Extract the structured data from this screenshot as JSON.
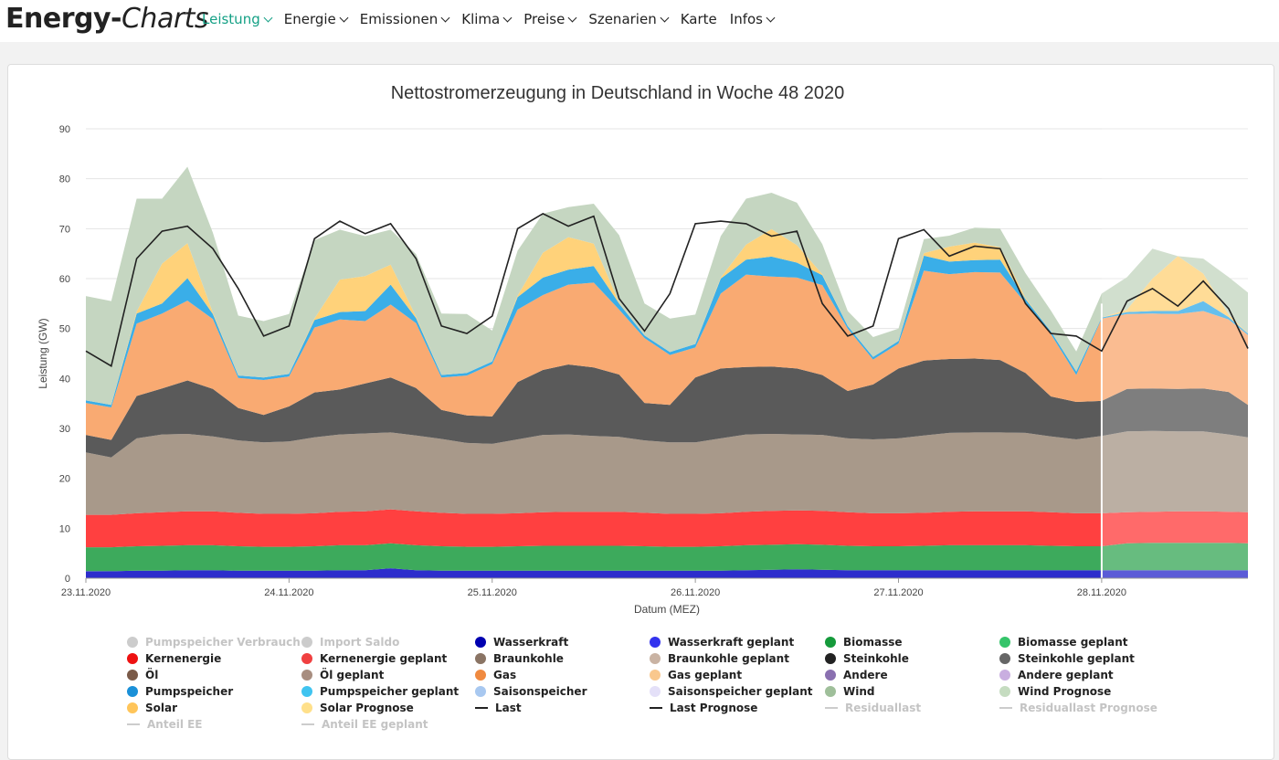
{
  "header": {
    "brand_bold": "Energy-",
    "brand_italic": "Charts",
    "nav": [
      {
        "label": "Leistung",
        "dropdown": true,
        "active": true
      },
      {
        "label": "Energie",
        "dropdown": true
      },
      {
        "label": "Emissionen",
        "dropdown": true
      },
      {
        "label": "Klima",
        "dropdown": true
      },
      {
        "label": "Preise",
        "dropdown": true
      },
      {
        "label": "Szenarien",
        "dropdown": true
      },
      {
        "label": "Karte",
        "dropdown": false
      },
      {
        "label": "Infos",
        "dropdown": true
      }
    ]
  },
  "chart_data": {
    "type": "area",
    "title": "Nettostromerzeugung in Deutschland in Woche 48 2020",
    "xlabel": "Datum (MEZ)",
    "ylabel": "Leistung (GW)",
    "ylim": [
      0,
      90
    ],
    "yticks": [
      0,
      10,
      20,
      30,
      40,
      50,
      60,
      70,
      80,
      90
    ],
    "xlim": [
      0,
      5.72
    ],
    "x_unit": "days since 23.11.2020 00:00",
    "xticks": [
      {
        "x": 0,
        "label": "23.11.2020"
      },
      {
        "x": 1,
        "label": "24.11.2020"
      },
      {
        "x": 2,
        "label": "25.11.2020"
      },
      {
        "x": 3,
        "label": "26.11.2020"
      },
      {
        "x": 4,
        "label": "27.11.2020"
      },
      {
        "x": 5,
        "label": "28.11.2020"
      }
    ],
    "forecast_start_x": 5.0,
    "stacking": "cumulative",
    "x": [
      0,
      0.125,
      0.25,
      0.375,
      0.5,
      0.625,
      0.75,
      0.875,
      1,
      1.125,
      1.25,
      1.375,
      1.5,
      1.625,
      1.75,
      1.875,
      2,
      2.125,
      2.25,
      2.375,
      2.5,
      2.625,
      2.75,
      2.875,
      3,
      3.125,
      3.25,
      3.375,
      3.5,
      3.625,
      3.75,
      3.875,
      4,
      4.125,
      4.25,
      4.375,
      4.5,
      4.625,
      4.75,
      4.875,
      5,
      5.125,
      5.25,
      5.375,
      5.5,
      5.625,
      5.72
    ],
    "series": [
      {
        "name": "Wasserkraft",
        "color": "#2d2dcc",
        "values": [
          1.4,
          1.4,
          1.5,
          1.5,
          1.6,
          1.6,
          1.5,
          1.5,
          1.5,
          1.5,
          1.6,
          1.6,
          2.0,
          1.6,
          1.5,
          1.5,
          1.5,
          1.5,
          1.5,
          1.5,
          1.5,
          1.5,
          1.5,
          1.5,
          1.5,
          1.5,
          1.6,
          1.7,
          1.8,
          1.7,
          1.6,
          1.6,
          1.6,
          1.6,
          1.6,
          1.6,
          1.6,
          1.6,
          1.6,
          1.6,
          1.6,
          1.6,
          1.6,
          1.6,
          1.6,
          1.6,
          1.6
        ]
      },
      {
        "name": "Biomasse",
        "color": "#3daa5c",
        "values": [
          4.8,
          4.8,
          4.9,
          5.0,
          5.0,
          5.0,
          4.9,
          4.8,
          4.8,
          4.9,
          5.0,
          5.0,
          5.0,
          5.0,
          4.9,
          4.8,
          4.8,
          4.9,
          5.0,
          5.0,
          5.0,
          5.0,
          4.9,
          4.8,
          4.8,
          4.9,
          5.0,
          5.0,
          5.0,
          5.0,
          4.9,
          4.8,
          4.8,
          4.9,
          5.0,
          5.0,
          5.0,
          5.0,
          4.9,
          4.8,
          4.8,
          5.4,
          5.5,
          5.5,
          5.5,
          5.5,
          5.4
        ]
      },
      {
        "name": "Kernenergie",
        "color": "#ff4040",
        "values": [
          6.5,
          6.5,
          6.6,
          6.7,
          6.8,
          6.8,
          6.7,
          6.6,
          6.6,
          6.6,
          6.7,
          6.8,
          6.8,
          6.8,
          6.7,
          6.6,
          6.6,
          6.6,
          6.7,
          6.8,
          6.8,
          6.8,
          6.7,
          6.6,
          6.6,
          6.6,
          6.7,
          6.8,
          6.8,
          6.8,
          6.7,
          6.6,
          6.6,
          6.6,
          6.7,
          6.8,
          6.8,
          6.8,
          6.7,
          6.6,
          6.6,
          6.2,
          6.2,
          6.3,
          6.3,
          6.2,
          6.2
        ]
      },
      {
        "name": "Braunkohle",
        "color": "#a8998a",
        "values": [
          12.5,
          11.5,
          15.0,
          15.6,
          15.5,
          15.0,
          14.5,
          14.3,
          14.5,
          15.2,
          15.5,
          15.6,
          15.4,
          15.2,
          14.8,
          14.2,
          14.0,
          14.8,
          15.5,
          15.5,
          15.2,
          15.0,
          14.5,
          14.3,
          14.3,
          15.0,
          15.5,
          15.4,
          15.2,
          15.2,
          14.8,
          14.8,
          15.0,
          15.5,
          15.8,
          15.8,
          15.8,
          15.7,
          15.2,
          14.8,
          15.5,
          16.2,
          16.2,
          16.0,
          16.0,
          15.5,
          15.0
        ]
      },
      {
        "name": "Steinkohle",
        "color": "#5a5a5a",
        "values": [
          3.5,
          3.5,
          8.5,
          9.2,
          10.7,
          9.5,
          6.5,
          5.5,
          7.0,
          9.0,
          9.0,
          10.0,
          11.0,
          9.5,
          5.8,
          5.5,
          5.5,
          11.5,
          13.0,
          14.0,
          13.7,
          12.5,
          7.5,
          7.5,
          13.0,
          14.0,
          13.5,
          13.5,
          13.2,
          12.0,
          9.5,
          11.0,
          14.0,
          15.0,
          14.8,
          14.8,
          14.5,
          12.0,
          8.0,
          7.5,
          7.0,
          8.5,
          8.5,
          8.5,
          8.6,
          8.5,
          6.5
        ]
      },
      {
        "name": "Gas",
        "color": "#f9aa72",
        "values": [
          6.4,
          6.5,
          14.5,
          15.0,
          16.0,
          14.0,
          6.0,
          7.0,
          6.0,
          13.0,
          14.0,
          12.5,
          14.6,
          13.0,
          6.5,
          8.0,
          10.5,
          14.5,
          15.0,
          16.0,
          17.0,
          13.0,
          13.0,
          10.0,
          6.0,
          15.0,
          18.5,
          18.0,
          18.2,
          18.0,
          12.5,
          5.0,
          5.0,
          18.0,
          17.0,
          17.3,
          17.5,
          14.0,
          12.5,
          5.4,
          16.5,
          15.0,
          15.0,
          15.0,
          15.5,
          14.5,
          14.0
        ]
      },
      {
        "name": "Pumpspeicher",
        "color": "#3aaee8",
        "values": [
          0.5,
          0.5,
          2.0,
          2.0,
          4.5,
          1.0,
          0.5,
          0.5,
          0.5,
          1.5,
          1.5,
          2.0,
          4.0,
          1.0,
          0.5,
          0.5,
          0.5,
          2.5,
          3.5,
          3.0,
          3.3,
          1.2,
          0.5,
          0.6,
          0.7,
          3.0,
          3.0,
          4.0,
          3.0,
          2.0,
          0.5,
          0.5,
          0.5,
          3.0,
          2.5,
          2.4,
          2.6,
          0.8,
          0.5,
          0.7,
          0.2,
          0.4,
          0.5,
          0.6,
          2.0,
          0.5,
          0.3
        ]
      },
      {
        "name": "Solar",
        "color": "#ffd27a",
        "values": [
          0,
          0,
          0.4,
          8.0,
          7.0,
          0.3,
          0,
          0,
          0,
          0.3,
          6.5,
          7.0,
          4.0,
          0.3,
          0,
          0,
          0,
          0.3,
          5.0,
          6.5,
          4.5,
          0.2,
          0,
          0,
          0,
          0.2,
          3.0,
          5.5,
          3.5,
          0.2,
          0,
          0,
          0,
          0.5,
          3.0,
          3.5,
          2.5,
          0.2,
          0,
          0,
          0,
          0.5,
          6.5,
          11.0,
          5.5,
          0.5,
          0
        ]
      },
      {
        "name": "Wind",
        "color": "#c5d6c1",
        "values": [
          20.9,
          20.8,
          22.6,
          13.0,
          15.3,
          16.0,
          12.0,
          11.3,
          12.0,
          15.7,
          10.0,
          8.0,
          7.0,
          12.5,
          12.3,
          11.8,
          6.2,
          9.0,
          7.8,
          6.0,
          8.0,
          13.5,
          6.4,
          6.7,
          5.9,
          8.3,
          9.2,
          7.3,
          8.5,
          6.0,
          3.0,
          4.0,
          2.5,
          2.8,
          2.2,
          3.0,
          3.7,
          5.0,
          4.2,
          4.0,
          4.8,
          6.5,
          6.0,
          0,
          3.0,
          7.5,
          8.2
        ]
      }
    ],
    "lines": [
      {
        "name": "Last",
        "color": "#222222",
        "values": [
          45.5,
          42.5,
          64.0,
          69.5,
          70.5,
          66.0,
          58.0,
          48.5,
          50.5,
          68.0,
          71.5,
          69.0,
          71.0,
          64.0,
          50.5,
          49.0,
          52.5,
          70.0,
          73.0,
          70.5,
          72.5,
          56.0,
          49.5,
          57.0,
          71.0,
          71.5,
          71.0,
          68.5,
          69.5,
          55.0,
          48.5,
          50.5,
          68.0,
          69.8,
          64.5,
          66.5,
          66.0,
          55.0,
          49.0,
          48.5,
          45.5,
          55.5,
          58.0,
          54.5,
          59.5,
          54.0,
          46.0
        ]
      }
    ]
  },
  "legend": [
    {
      "label": "Pumpspeicher Verbrauch",
      "color": "#cccccc",
      "marker": "dot",
      "hidden": true
    },
    {
      "label": "Import Saldo",
      "color": "#cccccc",
      "marker": "dot",
      "hidden": true
    },
    {
      "label": "Wasserkraft",
      "color": "#0000b0",
      "marker": "dot"
    },
    {
      "label": "Wasserkraft geplant",
      "color": "#3333ee",
      "marker": "dot"
    },
    {
      "label": "Biomasse",
      "color": "#159a3b",
      "marker": "dot"
    },
    {
      "label": "Biomasse geplant",
      "color": "#35c46a",
      "marker": "dot"
    },
    {
      "label": "Kernenergie",
      "color": "#ee1111",
      "marker": "dot"
    },
    {
      "label": "Kernenergie geplant",
      "color": "#f04040",
      "marker": "dot"
    },
    {
      "label": "Braunkohle",
      "color": "#8a7464",
      "marker": "dot"
    },
    {
      "label": "Braunkohle geplant",
      "color": "#c9b3a3",
      "marker": "dot"
    },
    {
      "label": "Steinkohle",
      "color": "#222222",
      "marker": "dot"
    },
    {
      "label": "Steinkohle geplant",
      "color": "#666666",
      "marker": "dot"
    },
    {
      "label": "Öl",
      "color": "#7a5a48",
      "marker": "dot"
    },
    {
      "label": "Öl geplant",
      "color": "#a88e80",
      "marker": "dot"
    },
    {
      "label": "Gas",
      "color": "#f08a40",
      "marker": "dot"
    },
    {
      "label": "Gas geplant",
      "color": "#f9c88e",
      "marker": "dot"
    },
    {
      "label": "Andere",
      "color": "#8a70b0",
      "marker": "dot"
    },
    {
      "label": "Andere geplant",
      "color": "#c9aee0",
      "marker": "dot"
    },
    {
      "label": "Pumpspeicher",
      "color": "#1a90d8",
      "marker": "dot"
    },
    {
      "label": "Pumpspeicher geplant",
      "color": "#40c4f0",
      "marker": "dot"
    },
    {
      "label": "Saisonspeicher",
      "color": "#a8c8f0",
      "marker": "dot"
    },
    {
      "label": "Saisonspeicher geplant",
      "color": "#e4e0f8",
      "marker": "dot"
    },
    {
      "label": "Wind",
      "color": "#9fbf9a",
      "marker": "dot"
    },
    {
      "label": "Wind Prognose",
      "color": "#c5dcc0",
      "marker": "dot"
    },
    {
      "label": "Solar",
      "color": "#ffc55a",
      "marker": "dot"
    },
    {
      "label": "Solar Prognose",
      "color": "#ffe08a",
      "marker": "dot"
    },
    {
      "label": "Last",
      "color": "#222222",
      "marker": "line"
    },
    {
      "label": "Last Prognose",
      "color": "#222222",
      "marker": "line"
    },
    {
      "label": "Residuallast",
      "color": "#cccccc",
      "marker": "line",
      "hidden": true
    },
    {
      "label": "Residuallast Prognose",
      "color": "#cccccc",
      "marker": "line",
      "hidden": true
    },
    {
      "label": "Anteil EE",
      "color": "#cccccc",
      "marker": "line",
      "hidden": true
    },
    {
      "label": "Anteil EE geplant",
      "color": "#cccccc",
      "marker": "line",
      "hidden": true
    }
  ]
}
